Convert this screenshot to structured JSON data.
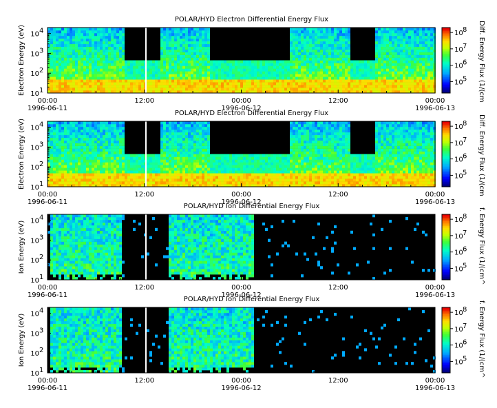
{
  "chart_data": [
    {
      "type": "heatmap",
      "title": "POLAR/HYD  Electron Differential Energy Flux",
      "ylabel": "Electron Energy (eV)",
      "colorbar_label": "Diff. Energy Flux (1/(cm",
      "y_scale": "log",
      "ylim": [
        10,
        20000
      ],
      "y_ticks": [
        "10",
        "10",
        "10",
        "10"
      ],
      "y_tick_exponents": [
        "1",
        "2",
        "3",
        "4"
      ],
      "colorbar_ticks": [
        "10",
        "10",
        "10",
        "10"
      ],
      "colorbar_tick_exponents": [
        "5",
        "6",
        "7",
        "8"
      ],
      "x_ticks": [
        "00:00",
        "12:00",
        "00:00",
        "12:00",
        "00:00"
      ],
      "x_dates": [
        "1996-06-11",
        "",
        "1996-06-12",
        "",
        "1996-06-13"
      ]
    },
    {
      "type": "heatmap",
      "title": "POLAR/HYD  Electron Differential Energy Flux",
      "ylabel": "Electron Energy (eV)",
      "colorbar_label": "Diff. Energy Flux (1/(cm",
      "y_scale": "log",
      "ylim": [
        10,
        20000
      ],
      "y_ticks": [
        "10",
        "10",
        "10",
        "10"
      ],
      "y_tick_exponents": [
        "1",
        "2",
        "3",
        "4"
      ],
      "colorbar_ticks": [
        "10",
        "10",
        "10",
        "10"
      ],
      "colorbar_tick_exponents": [
        "5",
        "6",
        "7",
        "8"
      ],
      "x_ticks": [
        "00:00",
        "12:00",
        "00:00",
        "12:00",
        "00:00"
      ],
      "x_dates": [
        "1996-06-11",
        "",
        "1996-06-12",
        "",
        "1996-06-13"
      ]
    },
    {
      "type": "heatmap",
      "title": "POLAR/HYD  Ion Differential Energy Flux",
      "ylabel": "Ion Energy (eV)",
      "colorbar_label": "f. Energy Flux (1/(cm^",
      "y_scale": "log",
      "ylim": [
        10,
        20000
      ],
      "y_ticks": [
        "10",
        "10",
        "10",
        "10"
      ],
      "y_tick_exponents": [
        "1",
        "2",
        "3",
        "4"
      ],
      "colorbar_ticks": [
        "10",
        "10",
        "10",
        "10"
      ],
      "colorbar_tick_exponents": [
        "5",
        "6",
        "7",
        "8"
      ],
      "x_ticks": [
        "00:00",
        "12:00",
        "00:00",
        "12:00",
        "00:00"
      ],
      "x_dates": [
        "1996-06-11",
        "",
        "1996-06-12",
        "",
        "1996-06-13"
      ]
    },
    {
      "type": "heatmap",
      "title": "POLAR/HYD  Ion Differential Energy Flux",
      "ylabel": "Ion Energy (eV)",
      "colorbar_label": "f. Energy Flux (1/(cm^",
      "y_scale": "log",
      "ylim": [
        10,
        20000
      ],
      "y_ticks": [
        "10",
        "10",
        "10",
        "10"
      ],
      "y_tick_exponents": [
        "1",
        "2",
        "3",
        "4"
      ],
      "colorbar_ticks": [
        "10",
        "10",
        "10",
        "10"
      ],
      "colorbar_tick_exponents": [
        "5",
        "6",
        "7",
        "8"
      ],
      "x_ticks": [
        "00:00",
        "12:00",
        "00:00",
        "12:00",
        "00:00"
      ],
      "x_dates": [
        "1996-06-11",
        "",
        "1996-06-12",
        "",
        "1996-06-13"
      ]
    }
  ]
}
